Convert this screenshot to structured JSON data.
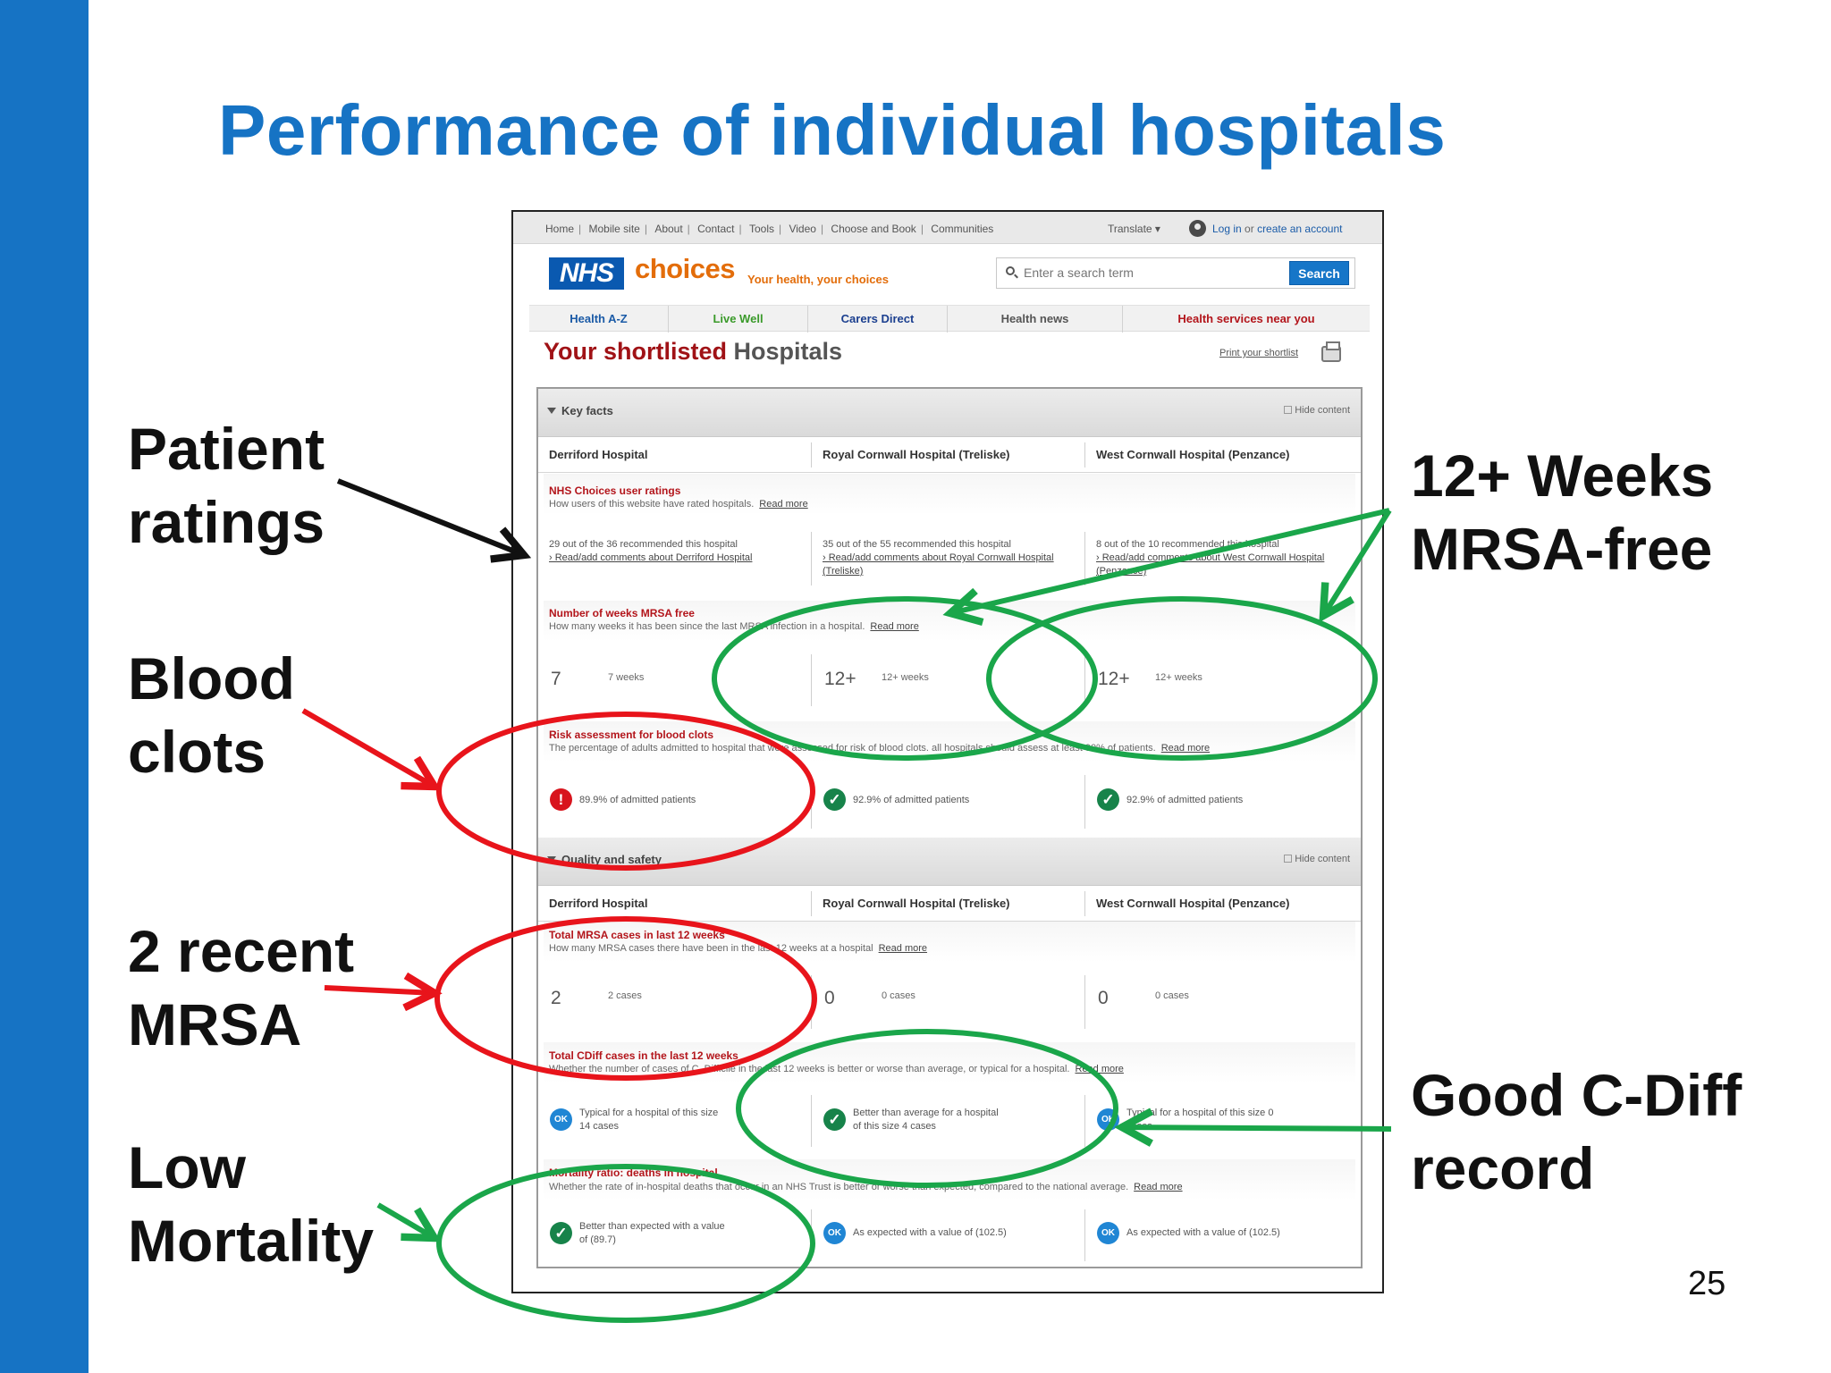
{
  "slide": {
    "title": "Performance of individual hospitals",
    "page_number": "25",
    "callouts": {
      "patient_ratings": [
        "Patient",
        "ratings"
      ],
      "blood_clots": [
        "Blood",
        "clots"
      ],
      "recent_mrsa": [
        "2 recent",
        "MRSA"
      ],
      "low_mortality": [
        "Low",
        "Mortality"
      ],
      "weeks_mrsa_free": [
        "12+ Weeks",
        "MRSA-free"
      ],
      "good_cdiff": [
        "Good C-Diff",
        "record"
      ]
    },
    "colors": {
      "accent": "#1673c4",
      "arrow_black": "#111111",
      "arrow_red": "#e8141b",
      "arrow_green": "#1aa64a"
    }
  },
  "site": {
    "top_nav": [
      "Home",
      "Mobile site",
      "About",
      "Contact",
      "Tools",
      "Video",
      "Choose and Book",
      "Communities"
    ],
    "translate": "Translate ▾",
    "login": {
      "login_text": "Log in",
      "or": "or",
      "create": "create an account"
    },
    "logo": {
      "nhs": "NHS",
      "choices": "choices",
      "tagline": "Your health, your choices"
    },
    "search": {
      "placeholder": "Enter a search term",
      "button": "Search"
    },
    "main_nav": [
      {
        "label": "Health A-Z",
        "color": "#1a5aa6"
      },
      {
        "label": "Live Well",
        "color": "#3a9a2a"
      },
      {
        "label": "Carers Direct",
        "color": "#1b3f8f"
      },
      {
        "label": "Health news",
        "color": "#555555"
      },
      {
        "label": "Health services near you",
        "color": "#b3151b"
      }
    ],
    "page_title": {
      "part1": "Your shortlisted",
      "part2": "Hospitals"
    },
    "print_link": "Print your shortlist"
  },
  "key_facts": {
    "title": "Key facts",
    "hide": "Hide content",
    "hospitals": [
      "Derriford Hospital",
      "Royal Cornwall Hospital (Treliske)",
      "West Cornwall Hospital (Penzance)"
    ],
    "user_ratings": {
      "title": "NHS Choices user ratings",
      "desc": "How users of this website have rated hospitals.",
      "more": "Read more",
      "values": [
        {
          "text": "29 out of the 36 recommended this hospital",
          "link": "› Read/add comments about Derriford Hospital"
        },
        {
          "text": "35 out of the 55 recommended this hospital",
          "link": "› Read/add comments about Royal Cornwall Hospital (Treliske)"
        },
        {
          "text": "8 out of the 10 recommended this hospital",
          "link": "› Read/add comments about West Cornwall Hospital (Penzance)"
        }
      ]
    },
    "mrsa_free": {
      "title": "Number of weeks MRSA free",
      "desc": "How many weeks it has been since the last MRSA infection in a hospital.",
      "more": "Read more",
      "values": [
        {
          "big": "7",
          "small": "7 weeks"
        },
        {
          "big": "12+",
          "small": "12+ weeks"
        },
        {
          "big": "12+",
          "small": "12+ weeks"
        }
      ]
    },
    "blood_clots": {
      "title": "Risk assessment for blood clots",
      "desc": "The percentage of adults admitted to hospital that were assessed for risk of blood clots. all hospitals should assess at least 90% of patients.",
      "more": "Read more",
      "values": [
        {
          "icon": "warning-icon",
          "text": "89.9% of admitted patients"
        },
        {
          "icon": "tick-icon",
          "text": "92.9% of admitted patients"
        },
        {
          "icon": "tick-icon",
          "text": "92.9% of admitted patients"
        }
      ]
    }
  },
  "quality": {
    "title": "Quality and safety",
    "hide": "Hide content",
    "hospitals": [
      "Derriford Hospital",
      "Royal Cornwall Hospital (Treliske)",
      "West Cornwall Hospital (Penzance)"
    ],
    "mrsa_cases": {
      "title": "Total MRSA cases in last 12 weeks",
      "desc": "How many MRSA cases there have been in the last 12 weeks at a hospital",
      "more": "Read more",
      "values": [
        {
          "big": "2",
          "small": "2 cases"
        },
        {
          "big": "0",
          "small": "0 cases"
        },
        {
          "big": "0",
          "small": "0 cases"
        }
      ]
    },
    "cdiff": {
      "title": "Total CDiff cases in the last 12 weeks",
      "desc": "Whether the number of cases of C. Difficile in the last 12 weeks is better or worse than average, or typical for a hospital.",
      "more": "Read more",
      "values": [
        {
          "icon": "ok-icon",
          "line1": "Typical for a hospital of this size",
          "line2": "14 cases"
        },
        {
          "icon": "tick-icon",
          "line1": "Better than average for a hospital",
          "line2": "of this size 4 cases"
        },
        {
          "icon": "ok-icon",
          "line1": "Typical for a hospital of this size 0",
          "line2": "cases"
        }
      ]
    },
    "mortality": {
      "title": "Mortality ratio: deaths in hospital",
      "desc": "Whether the rate of in-hospital deaths that occur in an NHS Trust is better or worse than expected, compared to the national average.",
      "more": "Read more",
      "values": [
        {
          "icon": "tick-icon",
          "line1": "Better than expected with a value",
          "line2": "of (89.7)"
        },
        {
          "icon": "ok-icon",
          "line1": "As expected with a value of (102.5)",
          "line2": ""
        },
        {
          "icon": "ok-icon",
          "line1": "As expected with a value of (102.5)",
          "line2": ""
        }
      ]
    }
  }
}
